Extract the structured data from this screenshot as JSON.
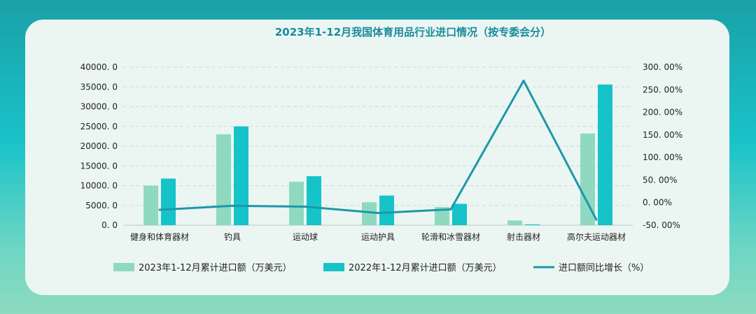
{
  "colors": {
    "bar2023": "#8fd9c1",
    "bar2022": "#16c3c9",
    "line": "#1d98a8",
    "title": "#1b8a9c",
    "grid": "#cfd8d6"
  },
  "chart_data": {
    "type": "bar",
    "title": "2023年1-12月我国体育用品行业进口情况（按专委会分）",
    "categories": [
      "健身和体育器材",
      "钓具",
      "运动球",
      "运动护具",
      "轮滑和冰雪器材",
      "射击器材",
      "高尔夫运动器材"
    ],
    "series": [
      {
        "name": "2023年1-12月累计进口额（万美元）",
        "type": "bar",
        "axis": "left",
        "values": [
          10000,
          23000,
          11000,
          5800,
          4600,
          1200,
          23200
        ]
      },
      {
        "name": "2022年1-12月累计进口额（万美元）",
        "type": "bar",
        "axis": "left",
        "values": [
          11800,
          25000,
          12400,
          7500,
          5400,
          200,
          35600
        ]
      },
      {
        "name": "进口额同比增长（%）",
        "type": "line",
        "axis": "right",
        "values": [
          -16,
          -7,
          -9,
          -23,
          -15,
          270,
          -38
        ]
      }
    ],
    "y_left": {
      "min": 0,
      "max": 40000,
      "ticks": [
        "0. 0",
        "5000. 0",
        "10000. 0",
        "15000. 0",
        "20000. 0",
        "25000. 0",
        "30000. 0",
        "35000. 0",
        "40000. 0"
      ]
    },
    "y_right": {
      "min": -50,
      "max": 300,
      "ticks": [
        "-50. 00%",
        "0. 00%",
        "50. 00%",
        "100. 00%",
        "150. 00%",
        "200. 00%",
        "250. 00%",
        "300. 00%"
      ]
    },
    "grid": true,
    "legend_position": "bottom"
  }
}
